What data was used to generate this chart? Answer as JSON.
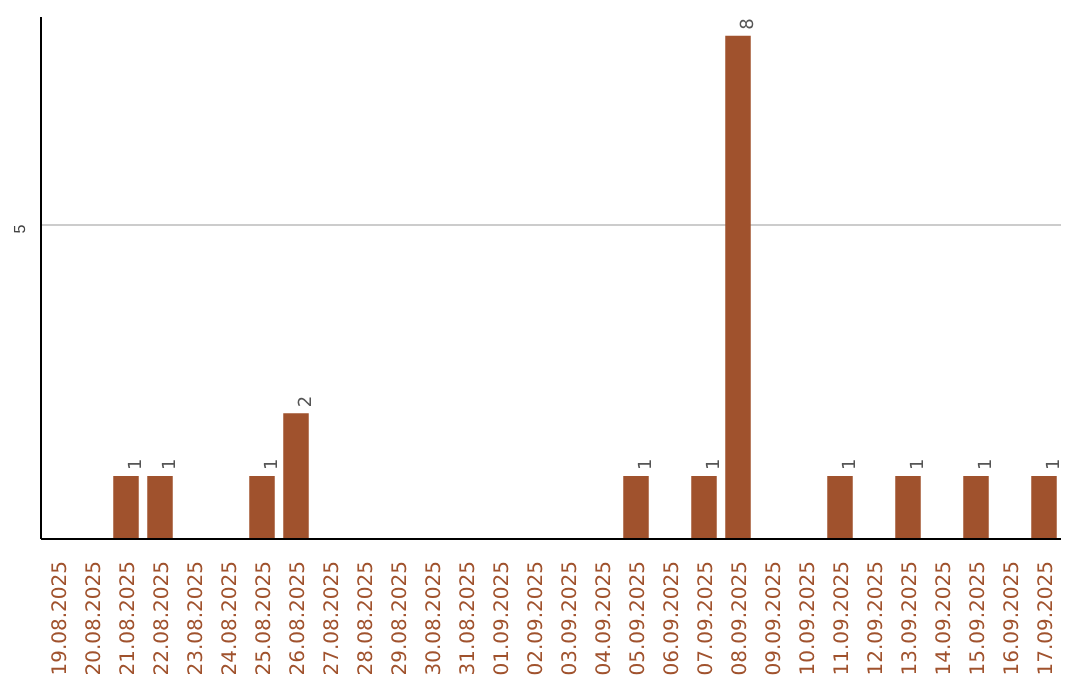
{
  "chart_data": {
    "type": "bar",
    "categories": [
      "19.08.2025",
      "20.08.2025",
      "21.08.2025",
      "22.08.2025",
      "23.08.2025",
      "24.08.2025",
      "25.08.2025",
      "26.08.2025",
      "27.08.2025",
      "28.08.2025",
      "29.08.2025",
      "30.08.2025",
      "31.08.2025",
      "01.09.2025",
      "02.09.2025",
      "03.09.2025",
      "04.09.2025",
      "05.09.2025",
      "06.09.2025",
      "07.09.2025",
      "08.09.2025",
      "09.09.2025",
      "10.09.2025",
      "11.09.2025",
      "12.09.2025",
      "13.09.2025",
      "14.09.2025",
      "15.09.2025",
      "16.09.2025",
      "17.09.2025"
    ],
    "values": [
      0,
      0,
      1,
      1,
      0,
      0,
      1,
      2,
      0,
      0,
      0,
      0,
      0,
      0,
      0,
      0,
      0,
      1,
      0,
      1,
      8,
      0,
      0,
      1,
      0,
      1,
      0,
      1,
      0,
      1
    ],
    "value_labels": [
      null,
      null,
      "1",
      "1",
      null,
      null,
      "1",
      "2",
      null,
      null,
      null,
      null,
      null,
      null,
      null,
      null,
      null,
      "1",
      null,
      "1",
      "8",
      null,
      null,
      "1",
      null,
      "1",
      null,
      "1",
      null,
      "1"
    ],
    "color": "#a0522d",
    "ylim": [
      0,
      8.3
    ],
    "yticks": [
      5
    ],
    "grid": "y"
  }
}
